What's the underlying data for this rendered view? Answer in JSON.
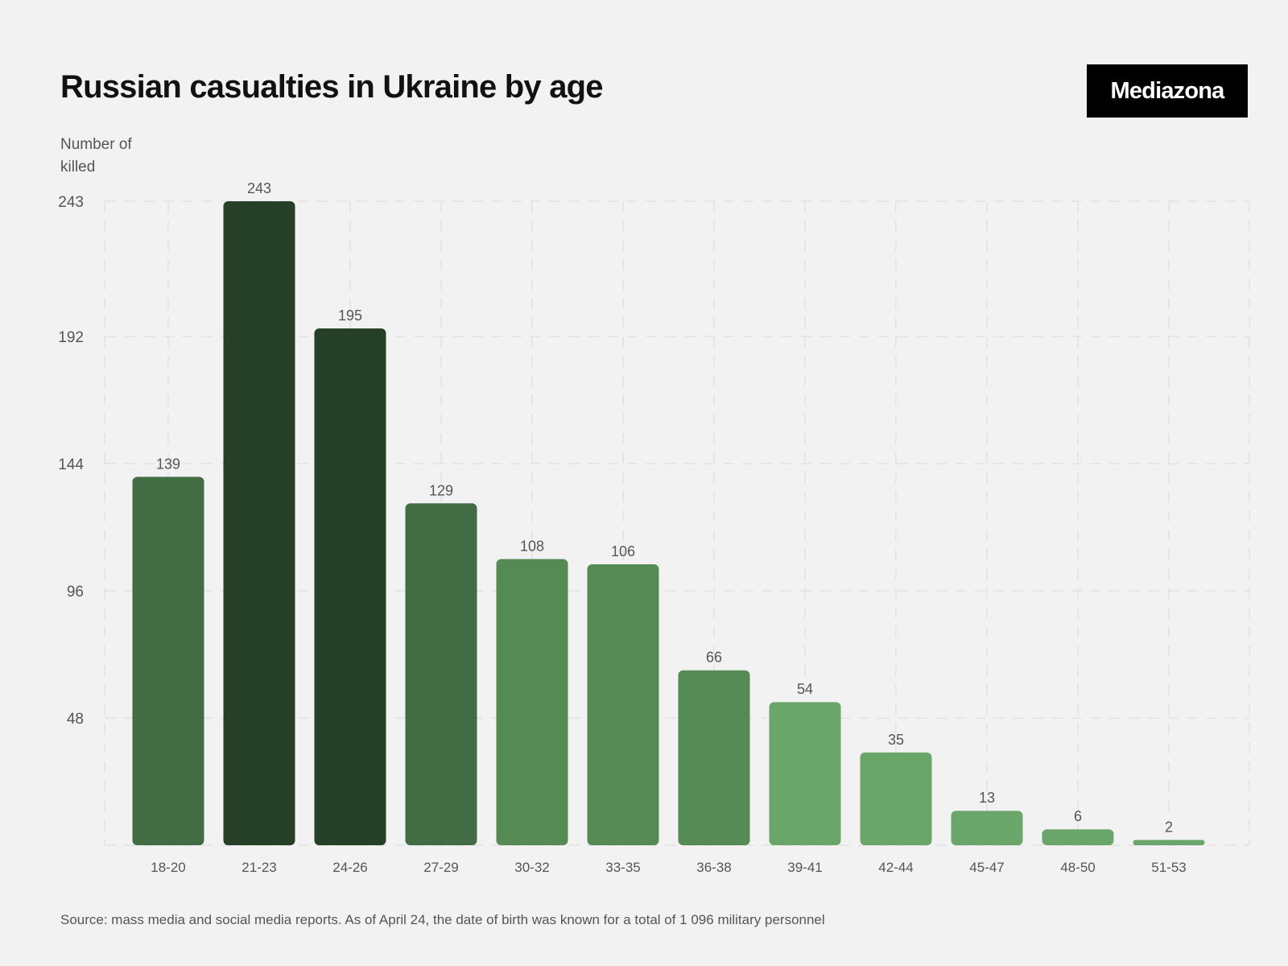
{
  "header": {
    "title": "Russian casualties in Ukraine by age",
    "logo": "Mediazona"
  },
  "footer": {
    "source": "Source: mass media and social media reports. As of April 24, the date of birth was known for a total of 1 096 military personnel"
  },
  "chart_data": {
    "type": "bar",
    "title": "Russian casualties in Ukraine by age",
    "ylabel": "Number of killed",
    "xlabel": "",
    "categories": [
      "18-20",
      "21-23",
      "24-26",
      "27-29",
      "30-32",
      "33-35",
      "36-38",
      "39-41",
      "42-44",
      "45-47",
      "48-50",
      "51-53"
    ],
    "values": [
      139,
      243,
      195,
      129,
      108,
      106,
      66,
      54,
      35,
      13,
      6,
      2
    ],
    "yticks": [
      "48",
      "96",
      "144",
      "192",
      "243"
    ],
    "ylim": [
      0,
      243
    ],
    "grid": true,
    "colors": {
      "darkest": "#254026",
      "dark": "#426c44",
      "mid": "#558a54",
      "light": "#6aa56a",
      "gridline": "#e1e1e1",
      "label": "#555555"
    }
  }
}
